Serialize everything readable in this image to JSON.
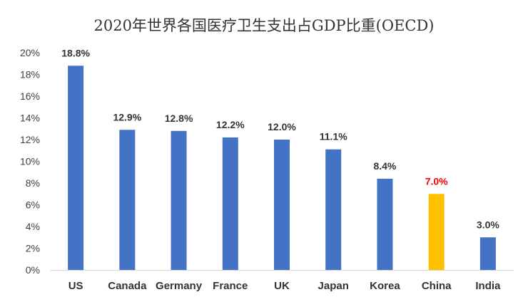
{
  "chart_data": {
    "type": "bar",
    "title": "2020年世界各国医疗卫生支出占GDP比重(OECD)",
    "xlabel": "",
    "ylabel": "",
    "categories": [
      "US",
      "Canada",
      "Germany",
      "France",
      "UK",
      "Japan",
      "Korea",
      "China",
      "India"
    ],
    "values": [
      18.8,
      12.9,
      12.8,
      12.2,
      12.0,
      11.1,
      8.4,
      7.0,
      3.0
    ],
    "data_labels": [
      "18.8%",
      "12.9%",
      "12.8%",
      "12.2%",
      "12.0%",
      "11.1%",
      "8.4%",
      "7.0%",
      "3.0%"
    ],
    "ylim": [
      0,
      20
    ],
    "yticks": [
      "0%",
      "2%",
      "4%",
      "6%",
      "8%",
      "10%",
      "12%",
      "14%",
      "16%",
      "18%",
      "20%"
    ],
    "grid": false,
    "colors": {
      "default_bar": "#4472C4",
      "highlight_bar": "#FFC000",
      "highlight_label": "#FF0000",
      "label": "#333333"
    },
    "highlight_category": "China"
  }
}
